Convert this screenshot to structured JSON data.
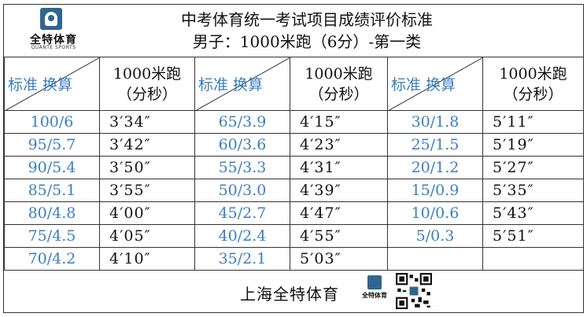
{
  "logo": {
    "cn": "全特体育",
    "en": "QUANTE SPORTS"
  },
  "title": "中考体育统一考试项目成绩评价标准",
  "subtitle": "男子：1000米跑（6分）-第一类",
  "header": {
    "diag_label": "标准 换算",
    "event_line1": "1000米跑",
    "event_line2": "（分秒）"
  },
  "rows": [
    [
      {
        "s": "100/6",
        "t": "3′34″"
      },
      {
        "s": "65/3.9",
        "t": "4′15″"
      },
      {
        "s": "30/1.8",
        "t": "5′11″"
      }
    ],
    [
      {
        "s": "95/5.7",
        "t": "3′42″"
      },
      {
        "s": "60/3.6",
        "t": "4′23″"
      },
      {
        "s": "25/1.5",
        "t": "5′19″"
      }
    ],
    [
      {
        "s": "90/5.4",
        "t": "3′50″"
      },
      {
        "s": "55/3.3",
        "t": "4′31″"
      },
      {
        "s": "20/1.2",
        "t": "5′27″"
      }
    ],
    [
      {
        "s": "85/5.1",
        "t": "3′55″"
      },
      {
        "s": "50/3.0",
        "t": "4′39″"
      },
      {
        "s": "15/0.9",
        "t": "5′35″"
      }
    ],
    [
      {
        "s": "80/4.8",
        "t": "4′00″"
      },
      {
        "s": "45/2.7",
        "t": "4′47″"
      },
      {
        "s": "10/0.6",
        "t": "5′43″"
      }
    ],
    [
      {
        "s": "75/4.5",
        "t": "4′05″"
      },
      {
        "s": "40/2.4",
        "t": "4′55″"
      },
      {
        "s": "5/0.3",
        "t": "5′51″"
      }
    ],
    [
      {
        "s": "70/4.2",
        "t": "4′10″"
      },
      {
        "s": "35/2.1",
        "t": "5′03″"
      },
      {
        "s": "",
        "t": ""
      }
    ]
  ],
  "footer": {
    "text": "上海全特体育",
    "logo_cn": "全特体育"
  },
  "colors": {
    "standard_text": "#3c7fc0",
    "logo_blue": "#2f6690"
  }
}
